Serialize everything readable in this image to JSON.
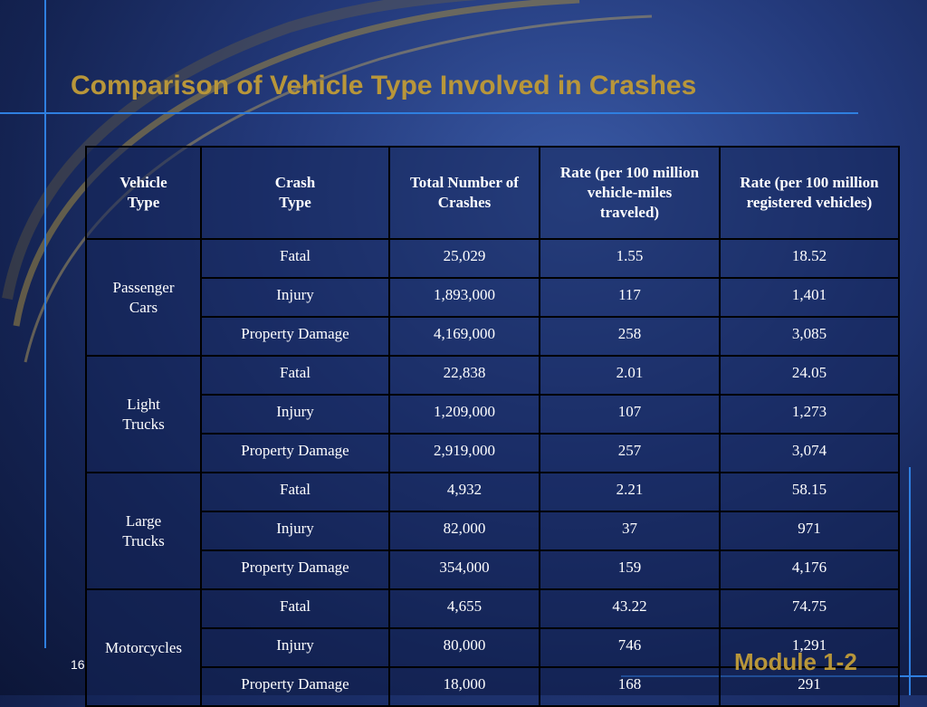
{
  "slide": {
    "title": "Comparison of Vehicle Type Involved in Crashes",
    "page_number": "16",
    "footer": "Module 1-2"
  },
  "table": {
    "headers": [
      [
        "Vehicle",
        "Type"
      ],
      [
        "Crash",
        "Type"
      ],
      [
        "Total Number of",
        "Crashes"
      ],
      [
        "Rate (per 100 million",
        "vehicle-miles",
        "traveled)"
      ],
      [
        "Rate (per 100 million",
        "registered vehicles)"
      ]
    ],
    "groups": [
      {
        "vehicle_type": [
          "Passenger",
          "Cars"
        ],
        "rows": [
          {
            "crash_type": "Fatal",
            "total": "25,029",
            "rate_vmt": "1.55",
            "rate_registered": "18.52"
          },
          {
            "crash_type": "Injury",
            "total": "1,893,000",
            "rate_vmt": "117",
            "rate_registered": "1,401"
          },
          {
            "crash_type": "Property Damage",
            "total": "4,169,000",
            "rate_vmt": "258",
            "rate_registered": "3,085"
          }
        ]
      },
      {
        "vehicle_type": [
          "Light",
          "Trucks"
        ],
        "rows": [
          {
            "crash_type": "Fatal",
            "total": "22,838",
            "rate_vmt": "2.01",
            "rate_registered": "24.05"
          },
          {
            "crash_type": "Injury",
            "total": "1,209,000",
            "rate_vmt": "107",
            "rate_registered": "1,273"
          },
          {
            "crash_type": "Property Damage",
            "total": "2,919,000",
            "rate_vmt": "257",
            "rate_registered": "3,074"
          }
        ]
      },
      {
        "vehicle_type": [
          "Large",
          "Trucks"
        ],
        "rows": [
          {
            "crash_type": "Fatal",
            "total": "4,932",
            "rate_vmt": "2.21",
            "rate_registered": "58.15"
          },
          {
            "crash_type": "Injury",
            "total": "82,000",
            "rate_vmt": "37",
            "rate_registered": "971"
          },
          {
            "crash_type": "Property Damage",
            "total": "354,000",
            "rate_vmt": "159",
            "rate_registered": "4,176"
          }
        ]
      },
      {
        "vehicle_type": [
          "Motorcycles"
        ],
        "rows": [
          {
            "crash_type": "Fatal",
            "total": "4,655",
            "rate_vmt": "43.22",
            "rate_registered": "74.75"
          },
          {
            "crash_type": "Injury",
            "total": "80,000",
            "rate_vmt": "746",
            "rate_registered": "1,291"
          },
          {
            "crash_type": "Property Damage",
            "total": "18,000",
            "rate_vmt": "168",
            "rate_registered": "291"
          }
        ]
      }
    ]
  },
  "colors": {
    "title": "#b8963a",
    "accent_line": "#2f7fe0",
    "background": "#1c2f6b",
    "table_text": "#ffffff"
  }
}
